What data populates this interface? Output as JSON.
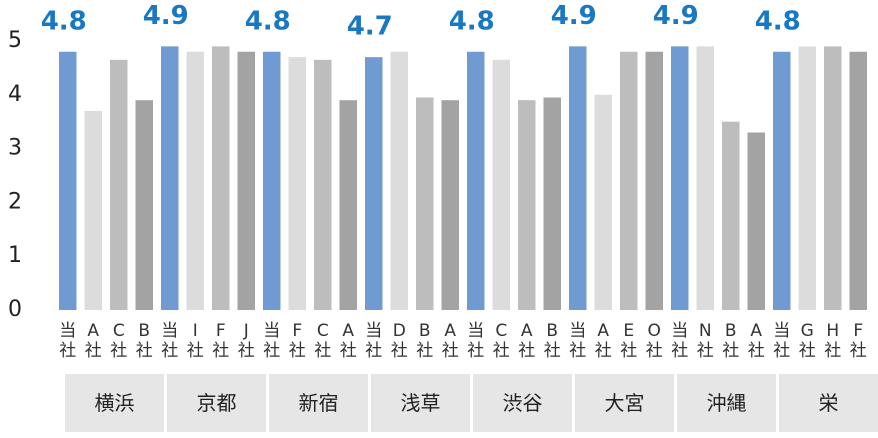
{
  "chart_data": {
    "type": "bar",
    "categories": [
      "当社",
      "A社",
      "C社",
      "B社",
      "当社",
      "I社",
      "F社",
      "J社",
      "当社",
      "F社",
      "C社",
      "A社",
      "当社",
      "D社",
      "B社",
      "A社",
      "当社",
      "C社",
      "A社",
      "B社",
      "当社",
      "A社",
      "E社",
      "O社",
      "当社",
      "N社",
      "B社",
      "A社",
      "当社",
      "G社",
      "H社",
      "F社"
    ],
    "values": [
      4.8,
      3.7,
      4.65,
      3.9,
      4.9,
      4.8,
      4.9,
      4.8,
      4.8,
      4.7,
      4.65,
      3.9,
      4.7,
      4.8,
      3.95,
      3.9,
      4.8,
      4.65,
      3.9,
      3.95,
      4.9,
      4.0,
      4.8,
      4.8,
      4.9,
      4.9,
      3.5,
      3.3,
      4.8,
      4.9,
      4.9,
      4.8
    ],
    "value_labels": [
      "4.8",
      null,
      null,
      null,
      "4.9",
      null,
      null,
      null,
      "4.8",
      null,
      null,
      null,
      "4.7",
      null,
      null,
      null,
      "4.8",
      null,
      null,
      null,
      "4.9",
      null,
      null,
      null,
      "4.9",
      null,
      null,
      null,
      "4.8",
      null,
      null,
      null
    ],
    "colors": [
      "#6f9bd2",
      "#dcdcdc",
      "#bdbdbd",
      "#a3a3a3"
    ],
    "label_color": "#1a78c2",
    "groups": [
      "横浜",
      "京都",
      "新宿",
      "浅草",
      "渋谷",
      "大宮",
      "沖縄",
      "栄"
    ],
    "ylim": [
      0,
      5
    ],
    "yticks": [
      0,
      1,
      2,
      3,
      4,
      5
    ],
    "grid": false
  }
}
